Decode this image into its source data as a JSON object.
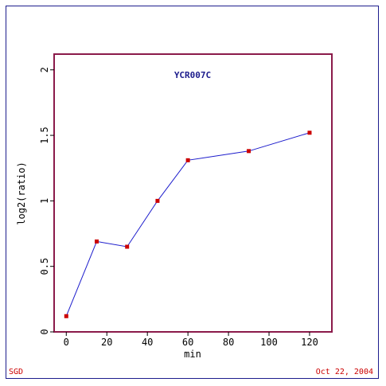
{
  "chart_data": {
    "type": "line",
    "title": "YCR007C",
    "xlabel": "min",
    "ylabel": "log2(ratio)",
    "xlim": [
      -6,
      131
    ],
    "ylim": [
      0,
      2.12
    ],
    "x_ticks": [
      "0",
      "20",
      "40",
      "60",
      "80",
      "100",
      "120"
    ],
    "y_ticks": [
      "0",
      "0.5",
      "1",
      "1.5",
      "2"
    ],
    "series": [
      {
        "x": [
          0,
          15,
          30,
          45,
          60,
          90,
          120
        ],
        "y": [
          0.12,
          0.69,
          0.65,
          1.0,
          1.31,
          1.38,
          1.52
        ]
      }
    ],
    "colors": {
      "line": "#1c1ccc",
      "marker": "#cc0000",
      "frame": "#8b1a4a",
      "title": "#1c1c8c"
    },
    "grid": false
  },
  "footer": {
    "left": "SGD",
    "right": "Oct 22, 2004"
  }
}
